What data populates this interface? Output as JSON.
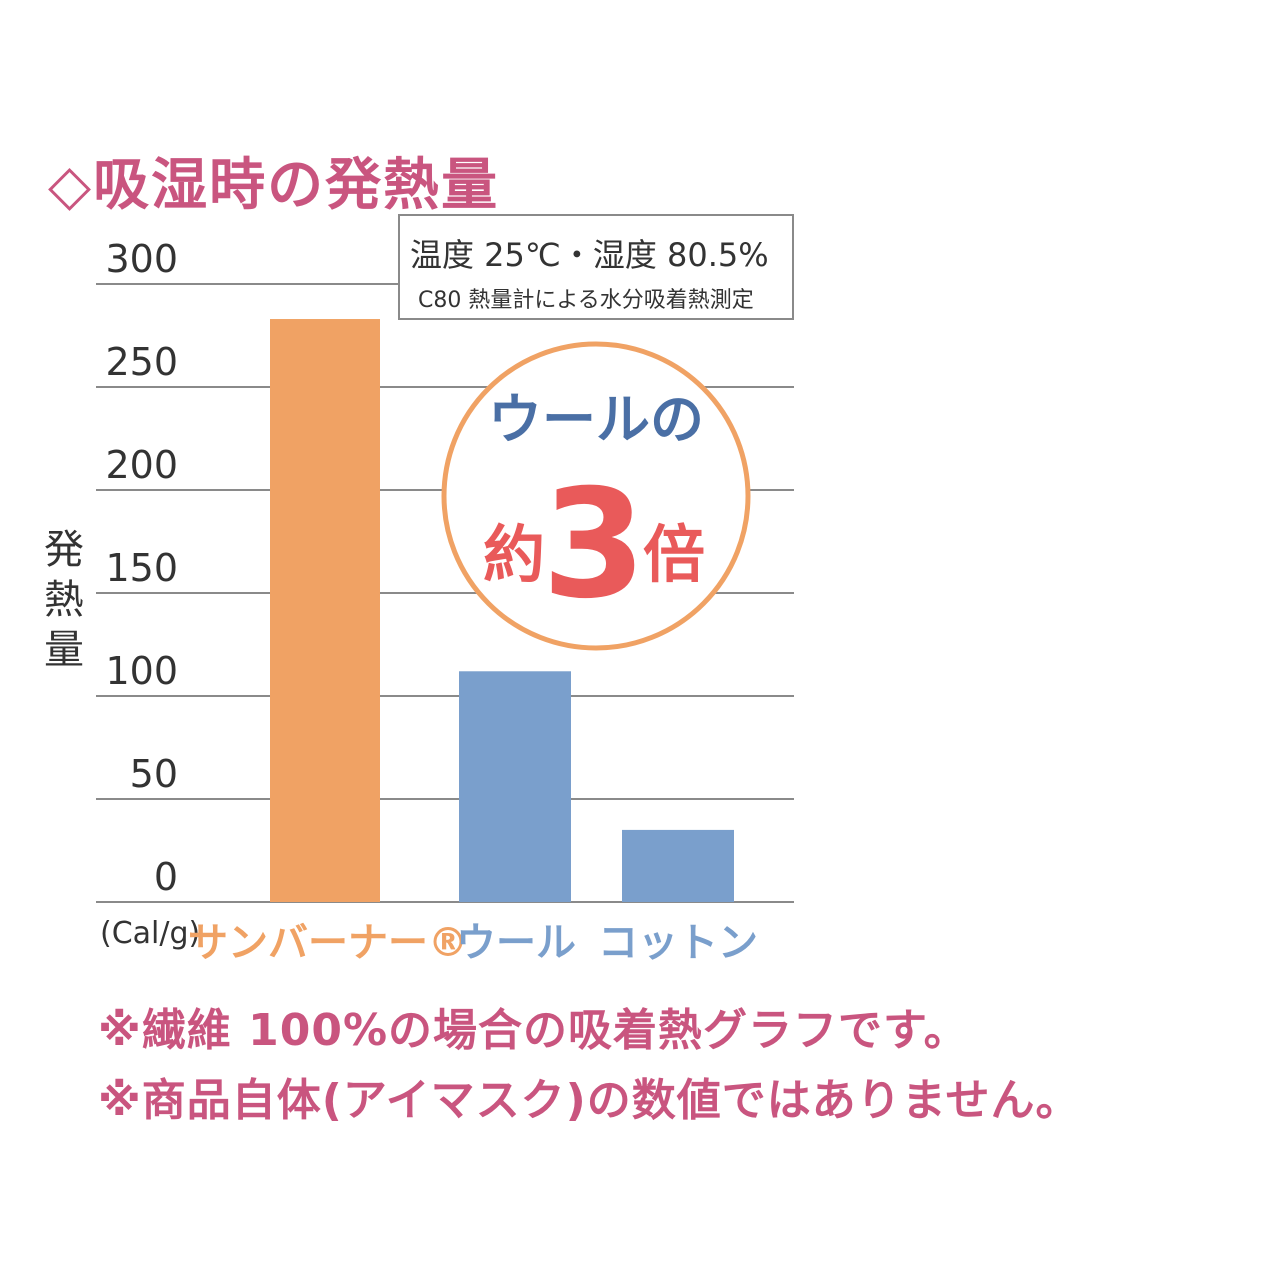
{
  "title": "◇吸湿時の発熱量",
  "conditions": {
    "line1": "温度 25℃・湿度 80.5%",
    "line2": "C80 熱量計による水分吸着熱測定"
  },
  "callout": {
    "top": "ウールの",
    "left": "約",
    "number": "3",
    "right": "倍"
  },
  "notes": [
    "※繊維 100%の場合の吸着熱グラフです。",
    "※商品自体(アイマスク)の数値ではありません。"
  ],
  "colors": {
    "accent": "#c9557f",
    "orange_bar": "#f0a264",
    "blue_bar": "#7a9fcc",
    "callout_ring": "#f0a264",
    "callout_blue": "#4a6fa5",
    "callout_red": "#e95a5a"
  },
  "chart_data": {
    "type": "bar",
    "title": "◇吸湿時の発熱量",
    "ylabel": "発熱量",
    "unit": "(Cal/g)",
    "ylim": [
      0,
      300
    ],
    "yticks": [
      0,
      50,
      100,
      150,
      200,
      250,
      300
    ],
    "grid": true,
    "categories": [
      "サンバーナー®",
      "ウール",
      "コットン"
    ],
    "values": [
      283,
      112,
      35
    ],
    "bar_colors": [
      "#f0a264",
      "#7a9fcc",
      "#7a9fcc"
    ],
    "label_colors": [
      "#f0a264",
      "#7a9fcc",
      "#7a9fcc"
    ]
  }
}
